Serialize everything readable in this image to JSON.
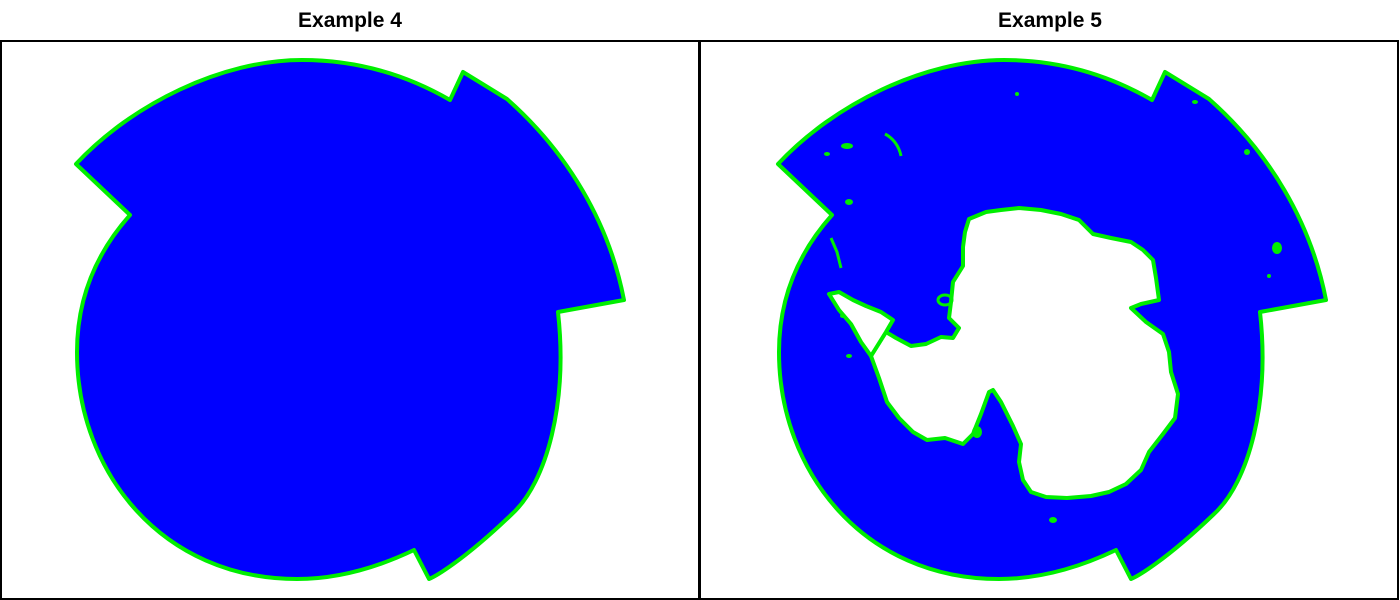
{
  "panels": [
    {
      "title": "Example 4",
      "fill_color": "#0000ff",
      "outline_color": "#00ee00",
      "shows_land_hole": false
    },
    {
      "title": "Example 5",
      "fill_color": "#0000ff",
      "outline_color": "#00ee00",
      "land_color": "#ffffff",
      "shows_land_hole": true
    }
  ],
  "frame_color": "#000000",
  "background_color": "#ffffff"
}
